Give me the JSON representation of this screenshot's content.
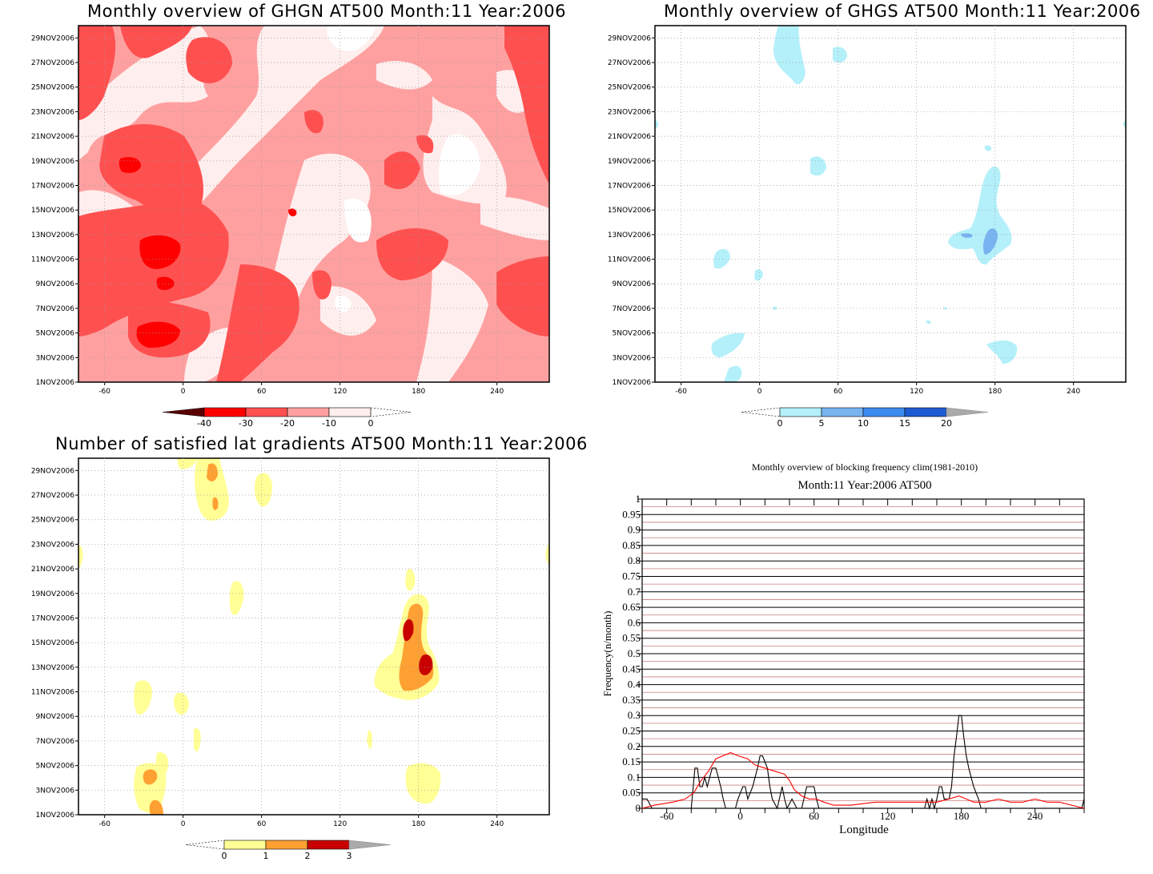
{
  "chart_data": [
    {
      "type": "heatmap",
      "title": "Monthly overview of GHGN AT500 Month:11 Year:2006",
      "x_ticks": [
        -60,
        0,
        60,
        120,
        180,
        240
      ],
      "xlim": [
        -80,
        280
      ],
      "y_ticks": [
        "1NOV2006",
        "3NOV2006",
        "5NOV2006",
        "7NOV2006",
        "9NOV2006",
        "11NOV2006",
        "13NOV2006",
        "15NOV2006",
        "17NOV2006",
        "19NOV2006",
        "21NOV2006",
        "23NOV2006",
        "25NOV2006",
        "27NOV2006",
        "29NOV2006"
      ],
      "colorbar": {
        "labels": [
          "-40",
          "-30",
          "-20",
          "-10",
          "0"
        ],
        "colors": [
          "#5a0000",
          "#ff0000",
          "#ff5050",
          "#ffa0a0",
          "#ffeeee"
        ]
      }
    },
    {
      "type": "heatmap",
      "title": "Monthly overview of GHGS AT500 Month:11 Year:2006",
      "x_ticks": [
        -60,
        0,
        60,
        120,
        180,
        240
      ],
      "xlim": [
        -80,
        280
      ],
      "y_ticks": [
        "1NOV2006",
        "3NOV2006",
        "5NOV2006",
        "7NOV2006",
        "9NOV2006",
        "11NOV2006",
        "13NOV2006",
        "15NOV2006",
        "17NOV2006",
        "19NOV2006",
        "21NOV2006",
        "23NOV2006",
        "25NOV2006",
        "27NOV2006",
        "29NOV2006"
      ],
      "colorbar": {
        "labels": [
          "0",
          "5",
          "10",
          "15",
          "20"
        ],
        "colors": [
          "#b4f0fa",
          "#78b4f0",
          "#3c8cf0",
          "#1e5ad2",
          "#aaaaaa"
        ]
      }
    },
    {
      "type": "heatmap",
      "title": "Number of satisfied lat gradients AT500 Month:11 Year:2006",
      "x_ticks": [
        -60,
        0,
        60,
        120,
        180,
        240
      ],
      "xlim": [
        -80,
        280
      ],
      "y_ticks": [
        "1NOV2006",
        "3NOV2006",
        "5NOV2006",
        "7NOV2006",
        "9NOV2006",
        "11NOV2006",
        "13NOV2006",
        "15NOV2006",
        "17NOV2006",
        "19NOV2006",
        "21NOV2006",
        "23NOV2006",
        "25NOV2006",
        "27NOV2006",
        "29NOV2006"
      ],
      "colorbar": {
        "labels": [
          "0",
          "1",
          "2",
          "3"
        ],
        "colors": [
          "#ffff96",
          "#ffa032",
          "#c80000",
          "#aaaaaa"
        ]
      }
    },
    {
      "type": "line",
      "title": "Monthly overview of blocking frequency clim(1981-2010)",
      "subtitle": "Month:11 Year:2006  AT500",
      "xlabel": "Longitude",
      "ylabel": "Frequency(n/month)",
      "xlim": [
        -80,
        280
      ],
      "ylim": [
        0,
        1
      ],
      "x_ticks": [
        -60,
        0,
        60,
        120,
        180,
        240
      ],
      "y_ticks": [
        "0",
        "0.05",
        "0.1",
        "0.15",
        "0.2",
        "0.25",
        "0.3",
        "0.35",
        "0.4",
        "0.45",
        "0.5",
        "0.55",
        "0.6",
        "0.65",
        "0.7",
        "0.75",
        "0.8",
        "0.85",
        "0.9",
        "0.95",
        "1"
      ],
      "series": [
        {
          "color": "#000000",
          "x": [
            -80,
            -76,
            -72,
            -40,
            -37,
            -35,
            -33,
            -31,
            -29,
            -27,
            -25,
            -23,
            -20,
            -18,
            -16,
            -14,
            -12,
            -10,
            -6,
            -4,
            -2,
            2,
            4,
            6,
            10,
            14,
            16,
            18,
            22,
            24,
            26,
            30,
            34,
            36,
            38,
            42,
            46,
            50,
            54,
            56,
            60,
            62,
            64,
            66,
            68,
            70,
            150,
            152,
            154,
            156,
            158,
            160,
            162,
            164,
            166,
            168,
            170,
            172,
            174,
            176,
            178,
            180,
            182,
            184,
            186,
            188,
            190,
            194,
            196,
            200,
            276,
            278,
            280
          ],
          "y": [
            0.03,
            0.03,
            0,
            0,
            0.13,
            0.13,
            0.07,
            0.07,
            0.1,
            0.07,
            0.1,
            0.13,
            0.13,
            0.1,
            0.07,
            0.03,
            0,
            0,
            0,
            0,
            0.03,
            0.07,
            0.07,
            0.03,
            0.07,
            0.13,
            0.17,
            0.17,
            0.13,
            0.07,
            0.03,
            0,
            0.07,
            0.03,
            0,
            0.03,
            0,
            0,
            0.07,
            0.07,
            0.07,
            0.03,
            0,
            0,
            0,
            0,
            0,
            0.03,
            0,
            0.03,
            0,
            0.03,
            0.07,
            0.07,
            0.03,
            0.03,
            0.03,
            0.07,
            0.17,
            0.23,
            0.3,
            0.3,
            0.23,
            0.17,
            0.13,
            0.1,
            0.07,
            0.03,
            0,
            0,
            0,
            0,
            0.03
          ]
        },
        {
          "color": "#ff0000",
          "x": [
            -80,
            -70,
            -55,
            -45,
            -38,
            -32,
            -26,
            -20,
            -14,
            -8,
            -2,
            6,
            12,
            20,
            28,
            36,
            40,
            44,
            50,
            56,
            62,
            68,
            76,
            90,
            110,
            130,
            150,
            160,
            170,
            178,
            184,
            190,
            200,
            210,
            220,
            230,
            240,
            250,
            260,
            270,
            280
          ],
          "y": [
            0,
            0.01,
            0.02,
            0.03,
            0.05,
            0.09,
            0.12,
            0.16,
            0.17,
            0.18,
            0.17,
            0.16,
            0.14,
            0.13,
            0.12,
            0.11,
            0.09,
            0.06,
            0.04,
            0.03,
            0.03,
            0.02,
            0.01,
            0.01,
            0.02,
            0.02,
            0.02,
            0.02,
            0.03,
            0.04,
            0.03,
            0.02,
            0.02,
            0.03,
            0.02,
            0.02,
            0.03,
            0.02,
            0.02,
            0.01,
            0
          ]
        }
      ]
    }
  ]
}
